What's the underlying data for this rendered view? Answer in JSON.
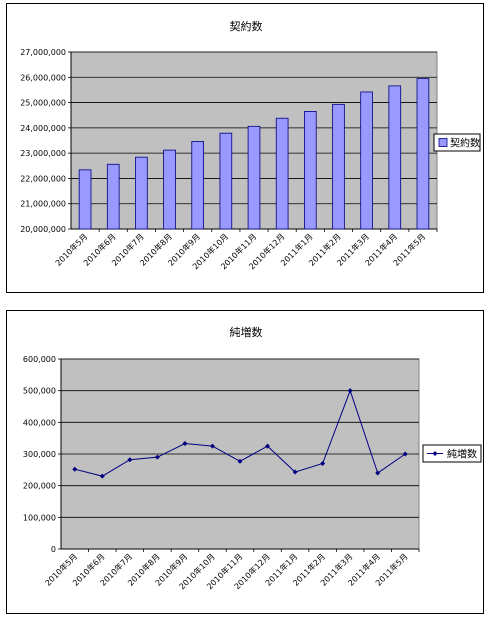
{
  "chart_data": [
    {
      "type": "bar",
      "title": "契約数",
      "categories": [
        "2010年5月",
        "2010年6月",
        "2010年7月",
        "2010年8月",
        "2010年9月",
        "2010年10月",
        "2010年11月",
        "2010年12月",
        "2011年1月",
        "2011年2月",
        "2011年3月",
        "2011年4月",
        "2011年5月"
      ],
      "series": [
        {
          "name": "契約数",
          "values": [
            22340000,
            22560000,
            22840000,
            23120000,
            23460000,
            23790000,
            24060000,
            24380000,
            24650000,
            24930000,
            25420000,
            25660000,
            25950000
          ]
        }
      ],
      "ylim": [
        20000000,
        27000000
      ],
      "yticks": [
        "20,000,000",
        "21,000,000",
        "22,000,000",
        "23,000,000",
        "24,000,000",
        "25,000,000",
        "26,000,000",
        "27,000,000"
      ],
      "grid": true,
      "legend": "right",
      "colors": {
        "bar": "#9999ff",
        "bar_border": "#000080",
        "plot_bg": "#c0c0c0"
      }
    },
    {
      "type": "line",
      "title": "純増数",
      "categories": [
        "2010年5月",
        "2010年6月",
        "2010年7月",
        "2010年8月",
        "2010年9月",
        "2010年10月",
        "2010年11月",
        "2010年12月",
        "2011年1月",
        "2011年2月",
        "2011年3月",
        "2011年4月",
        "2011年5月"
      ],
      "series": [
        {
          "name": "純増数",
          "values": [
            252000,
            230000,
            282000,
            290000,
            333000,
            325000,
            277000,
            325000,
            243000,
            270000,
            500000,
            240000,
            300000
          ]
        }
      ],
      "ylim": [
        0,
        600000
      ],
      "yticks": [
        "0",
        "100,000",
        "200,000",
        "300,000",
        "400,000",
        "500,000",
        "600,000"
      ],
      "grid": true,
      "legend": "right",
      "colors": {
        "line": "#000080",
        "plot_bg": "#c0c0c0"
      }
    }
  ]
}
